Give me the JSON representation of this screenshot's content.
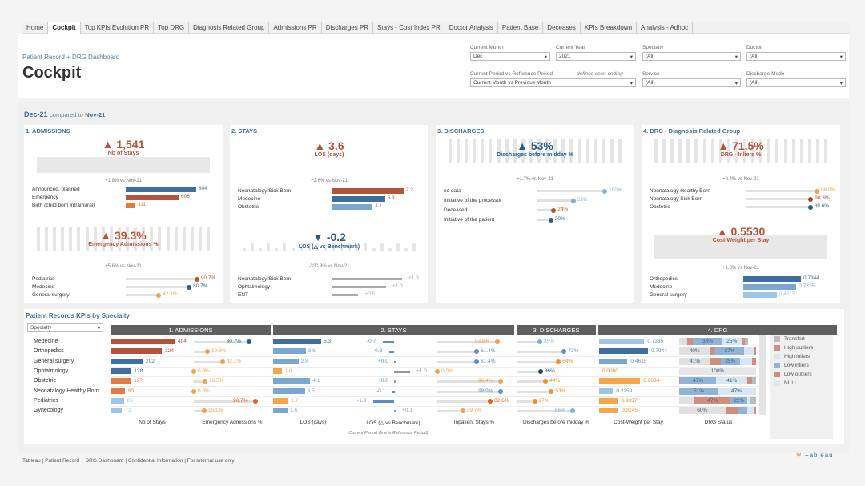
{
  "tabs": [
    "Home",
    "Cockpit",
    "Top KPIs Evolution PR",
    "Top DRG",
    "Diagnosis Related Group",
    "Admissions PR",
    "Discharges PR",
    "Stays - Cost Index PR",
    "Doctor Analysis",
    "Patient Base",
    "Deceases",
    "KPIs Breakdown",
    "Analysis - Adhoc"
  ],
  "active_tab": "Cockpit",
  "header": {
    "subtitle": "Patient Record + DRG Dashboard",
    "title": "Cockpit"
  },
  "filters": {
    "current_month": {
      "label": "Current Month",
      "value": "Dec"
    },
    "current_year": {
      "label": "Current Year",
      "value": "2021"
    },
    "specialty": {
      "label": "Specialty",
      "value": "(All)"
    },
    "doctor": {
      "label": "Doctor",
      "value": "(All)"
    },
    "period": {
      "label": "Current Period vs Reference Period",
      "note": "defines color coding",
      "value": "Current Month vs Previous Month"
    },
    "service": {
      "label": "Service",
      "value": "(All)"
    },
    "discharge_mode": {
      "label": "Discharge Mode",
      "value": "(All)"
    }
  },
  "period": {
    "current": "Dec-21",
    "compared": "compared to",
    "reference": "Nov-21"
  },
  "panels": {
    "admissions": {
      "title": "1. ADMISSIONS",
      "kpi1": {
        "value": "1,541",
        "label": "Nb of Stays",
        "delta": "+1.8% vs Nov-21",
        "dir": "up"
      },
      "rows1": [
        {
          "label": "Announced, planned",
          "value": "804",
          "pct": 1.0,
          "color": "#3f6f9e"
        },
        {
          "label": "Emergency",
          "value": "606",
          "pct": 0.75,
          "color": "#b5523a"
        },
        {
          "label": "Birth (child born intramural)",
          "value": "111",
          "pct": 0.14,
          "color": "#e07b43"
        }
      ],
      "kpi2": {
        "value": "39.3%",
        "label": "Emergency Admissions %",
        "delta": "+5.6% vs Nov-21",
        "dir": "up"
      },
      "rows2": [
        {
          "label": "Pediatrics",
          "value": "90.7%",
          "pct": 0.907,
          "color": "#c4561e"
        },
        {
          "label": "Medecine",
          "value": "80.7%",
          "pct": 0.807,
          "color": "#2a5d8a"
        },
        {
          "label": "General surgery",
          "value": "42.1%",
          "pct": 0.421,
          "color": "#f2a14a"
        }
      ]
    },
    "stays": {
      "title": "2. STAYS",
      "kpi1": {
        "value": "3.6",
        "label": "LOS (days)",
        "delta": "+2.6% vs Nov-21",
        "dir": "up"
      },
      "rows1": [
        {
          "label": "Neonatalogy Sick Born",
          "value": "7.2",
          "pct": 1.0,
          "color": "#b5523a"
        },
        {
          "label": "Medecine",
          "value": "5.3",
          "pct": 0.74,
          "color": "#3f6f9e"
        },
        {
          "label": "Obstetric",
          "value": "4.1",
          "pct": 0.57,
          "color": "#7aa7d0"
        }
      ],
      "kpi2": {
        "value": "-0.2",
        "label": "LOS (△ vs Benchmark)",
        "delta": "-330.9% vs Nov-21",
        "dir": "down"
      },
      "rows2": [
        {
          "label": "Neonatalogy Sick Born",
          "value": "+1.3",
          "pct": 1.0
        },
        {
          "label": "Ophtalmology",
          "value": "+1.0",
          "pct": 0.77
        },
        {
          "label": "ENT",
          "value": "+0.5",
          "pct": 0.38
        }
      ]
    },
    "discharges": {
      "title": "3. DISCHARGES",
      "kpi1": {
        "value": "53%",
        "label": "Discharges before midday %",
        "delta": "+1.7% vs Nov-21",
        "dir": "up"
      },
      "rows1": [
        {
          "label": "no data",
          "value": "100%",
          "pct": 1.0,
          "color": "#7fb1d8"
        },
        {
          "label": "Initiative of the processor",
          "value": "53%",
          "pct": 0.53,
          "color": "#7fb1d8"
        },
        {
          "label": "Deceased",
          "value": "24%",
          "pct": 0.24,
          "color": "#b5523a"
        },
        {
          "label": "Initiative of the patient",
          "value": "20%",
          "pct": 0.2,
          "color": "#2a5d8a"
        }
      ]
    },
    "drg": {
      "title": "4. DRG - Diagnosis Related Group",
      "kpi1": {
        "value": "71.5%",
        "label": "DRG - Inliers %",
        "delta": "+0.4% vs Nov-21",
        "dir": "up"
      },
      "rows1": [
        {
          "label": "Neonatalogy Healthy Born",
          "value": "98.9%",
          "pct": 0.989,
          "color": "#f2a14a"
        },
        {
          "label": "Neonatalogy Sick Born",
          "value": "90.3%",
          "pct": 0.903,
          "color": "#a0492e"
        },
        {
          "label": "Obstetric",
          "value": "89.6%",
          "pct": 0.896,
          "color": "#2a5d8a"
        }
      ],
      "kpi2": {
        "value": "0.5530",
        "label": "Cost-Weight per Stay",
        "delta": "+1.8% vs Nov-21",
        "dir": "up"
      },
      "rows2": [
        {
          "label": "Orthopedics",
          "value": "0.7944",
          "pct": 1.0,
          "color": "#3f6f9e"
        },
        {
          "label": "Medecine",
          "value": "0.7335",
          "pct": 0.92,
          "color": "#7aa7d0"
        },
        {
          "label": "General surgery",
          "value": "0.4615",
          "pct": 0.58,
          "color": "#9ec5e3"
        }
      ]
    }
  },
  "table": {
    "title": "Patient Records KPIs by Specialty",
    "dropdown": "Specialty",
    "groups": [
      "1. ADMISSIONS",
      "2. STAYS",
      "3. DISCHARGES",
      "4. DRG"
    ],
    "columns": [
      "Nb of Stays",
      "Emergency Admissions %",
      "LOS (days)",
      "LOS (△ vs Benchmark)",
      "Inpatient Stays %",
      "Discharges before midday %",
      "Cost-Weight per Stay",
      "DRG Status"
    ],
    "note": "Current Period  (line is Reference Period)",
    "rows": [
      {
        "name": "Medecine",
        "stays": 404,
        "stays_c": "#b5523a",
        "em": "80.7%",
        "em_v": 0.807,
        "em_c": "#2a5d8a",
        "los": "5.3",
        "los_v": 5.3,
        "los_c": "#3f6f9e",
        "bm": "-0.7",
        "bm_v": -0.7,
        "inp": "93.6%",
        "inp_v": 0.936,
        "inp_c": "#f2a14a",
        "dis": "35%",
        "dis_v": 0.35,
        "dis_c": "#7fb1d8",
        "cw": "0.7335",
        "cw_v": 0.7335,
        "cw_c": "#9ec5e3",
        "drg": [
          [
            "#e0e0e0",
            0.1,
            ""
          ],
          [
            "#d08f7e",
            0.08,
            ""
          ],
          [
            "#8fb4d8",
            0.38,
            "38%"
          ],
          [
            "#d7e7f5",
            0.25,
            "25%"
          ],
          [
            "#d08f7e",
            0.04,
            ""
          ],
          [
            "#bbb",
            0.05,
            ""
          ]
        ]
      },
      {
        "name": "Orthopedics",
        "stays": 324,
        "stays_c": "#b5523a",
        "em": "19.8%",
        "em_v": 0.198,
        "em_c": "#f2a14a",
        "los": "3.6",
        "los_v": 3.6,
        "los_c": "#7aa7d0",
        "bm": "-0.3",
        "bm_v": -0.3,
        "inp": "61.4%",
        "inp_v": 0.614,
        "inp_c": "#5a8fc4",
        "dis": "73%",
        "dis_v": 0.73,
        "dis_c": "#5a8fc4",
        "cw": "0.7944",
        "cw_v": 0.7944,
        "cw_c": "#3f6f9e",
        "drg": [
          [
            "#e0e0e0",
            0.4,
            "40%"
          ],
          [
            "#d08f7e",
            0.07,
            ""
          ],
          [
            "#8fb4d8",
            0.37,
            "37%"
          ],
          [
            "#d7e7f5",
            0.13,
            ""
          ],
          [
            "#d08f7e",
            0.03,
            ""
          ]
        ]
      },
      {
        "name": "General surgery",
        "stays": 202,
        "stays_c": "#3f6f9e",
        "em": "42.1%",
        "em_v": 0.421,
        "em_c": "#f2a14a",
        "los": "2.8",
        "los_v": 2.8,
        "los_c": "#7aa7d0",
        "bm": "+0.0",
        "bm_v": 0,
        "inp": "61.4%",
        "inp_v": 0.614,
        "inp_c": "#5a8fc4",
        "dis": "64%",
        "dis_v": 0.64,
        "dis_c": "#f28e2b",
        "cw": "0.4615",
        "cw_v": 0.4615,
        "cw_c": "#7aa7d0",
        "drg": [
          [
            "#e0e0e0",
            0.41,
            "41%"
          ],
          [
            "#d08f7e",
            0.13,
            ""
          ],
          [
            "#8fb4d8",
            0.25,
            "25%"
          ],
          [
            "#d7e7f5",
            0.16,
            ""
          ],
          [
            "#d08f7e",
            0.05,
            ""
          ]
        ]
      },
      {
        "name": "Ophtalmology",
        "stays": 128,
        "stays_c": "#3f6f9e",
        "em": "0.0%",
        "em_v": 0.0,
        "em_c": "#f2a14a",
        "los": "1.0",
        "los_v": 1.0,
        "los_c": "#f7a54b",
        "bm": "+1.0",
        "bm_v": 1.0,
        "inp": "0.0%",
        "inp_v": 0.0,
        "inp_c": "#f2a14a",
        "dis": "36%",
        "dis_v": 0.36,
        "dis_c": "#1f4e79",
        "cw": "0.0000",
        "cw_v": 0,
        "cw_c": "#f7a54b",
        "drg": [
          [
            "#e6e6e6",
            1.0,
            "100%"
          ]
        ]
      },
      {
        "name": "Obstetric",
        "stays": 127,
        "stays_c": "#e07b43",
        "em": "16.5%",
        "em_v": 0.165,
        "em_c": "#f2a14a",
        "los": "4.1",
        "los_v": 4.1,
        "los_c": "#7aa7d0",
        "bm": "+0.0",
        "bm_v": 0,
        "inp": "98.4%",
        "inp_v": 0.984,
        "inp_c": "#f2a14a",
        "dis": "44%",
        "dis_v": 0.44,
        "dis_c": "#f28e2b",
        "cw": "0.6684",
        "cw_v": 0.6684,
        "cw_c": "#f7a54b",
        "drg": [
          [
            "#d08f7e",
            0.01,
            ""
          ],
          [
            "#8fb4d8",
            0.47,
            "47%"
          ],
          [
            "#d7e7f5",
            0.41,
            "41%"
          ],
          [
            "#d08f7e",
            0.06,
            ""
          ],
          [
            "#bbb",
            0.05,
            ""
          ]
        ]
      },
      {
        "name": "Neonatalogy Healthy Born",
        "stays": 90,
        "stays_c": "#e07b43",
        "em": "0.0%",
        "em_v": 0.0,
        "em_c": "#f2a14a",
        "los": "3.5",
        "los_v": 3.5,
        "los_c": "#7aa7d0",
        "bm": "-0.1",
        "bm_v": -0.1,
        "inp": "98.9%",
        "inp_v": 0.989,
        "inp_c": "#5a8fc4",
        "dis": "53%",
        "dis_v": 0.53,
        "dis_c": "#f28e2b",
        "cw": "0.2259",
        "cw_v": 0.2259,
        "cw_c": "#9ec5e3",
        "drg": [
          [
            "#8fb4d8",
            0.51,
            "51%"
          ],
          [
            "#d7e7f5",
            0.47,
            "47%"
          ],
          [
            "#e0e0e0",
            0.02,
            ""
          ]
        ]
      },
      {
        "name": "Pediatrics",
        "stays": 86,
        "stays_c": "#9ec5e3",
        "em": "90.7%",
        "em_v": 0.907,
        "em_c": "#e0621b",
        "los": "1.7",
        "los_v": 1.7,
        "los_c": "#f7a54b",
        "bm": "-1.3",
        "bm_v": -1.3,
        "inp": "82.6%",
        "inp_v": 0.826,
        "inp_c": "#e0621b",
        "dis": "27%",
        "dis_v": 0.27,
        "dis_c": "#f28e2b",
        "cw": "0.3037",
        "cw_v": 0.3037,
        "cw_c": "#f7a54b",
        "drg": [
          [
            "#e0e0e0",
            0.2,
            ""
          ],
          [
            "#d08f7e",
            0.47,
            "47%"
          ],
          [
            "#8fb4d8",
            0.22,
            "22%"
          ],
          [
            "#d7e7f5",
            0.04,
            ""
          ],
          [
            "#bbb",
            0.07,
            ""
          ]
        ]
      },
      {
        "name": "Gynecology",
        "stays": 73,
        "stays_c": "#9ec5e3",
        "em": "15.1%",
        "em_v": 0.151,
        "em_c": "#f2a14a",
        "los": "1.6",
        "los_v": 1.6,
        "los_c": "#7aa7d0",
        "bm": "+0.1",
        "bm_v": 0.1,
        "inp": "39.7%",
        "inp_v": 0.397,
        "inp_c": "#f2a14a",
        "dis": "86%",
        "dis_v": 0.86,
        "dis_c": "#7fb1d8",
        "cw": "0.3145",
        "cw_v": 0.3145,
        "cw_c": "#f7a54b",
        "drg": [
          [
            "#e0e0e0",
            0.6,
            "60%"
          ],
          [
            "#d08f7e",
            0.16,
            ""
          ],
          [
            "#8fb4d8",
            0.13,
            ""
          ],
          [
            "#d7e7f5",
            0.08,
            ""
          ],
          [
            "#d08f7e",
            0.03,
            ""
          ]
        ]
      }
    ],
    "legend": [
      {
        "label": "Transfert",
        "color": "#bbbbbb"
      },
      {
        "label": "High outliers",
        "color": "#d08f7e"
      },
      {
        "label": "High inliers",
        "color": "#d7e7f5"
      },
      {
        "label": "Low inliers",
        "color": "#8fb4d8"
      },
      {
        "label": "Low outliers",
        "color": "#d08f7e"
      },
      {
        "label": "NULL",
        "color": "#e6e6e6"
      }
    ]
  },
  "footer": "Tableau | Patient Record + DRG Dashboard | Confidential Information | For internal use only",
  "logo": "+ableau"
}
